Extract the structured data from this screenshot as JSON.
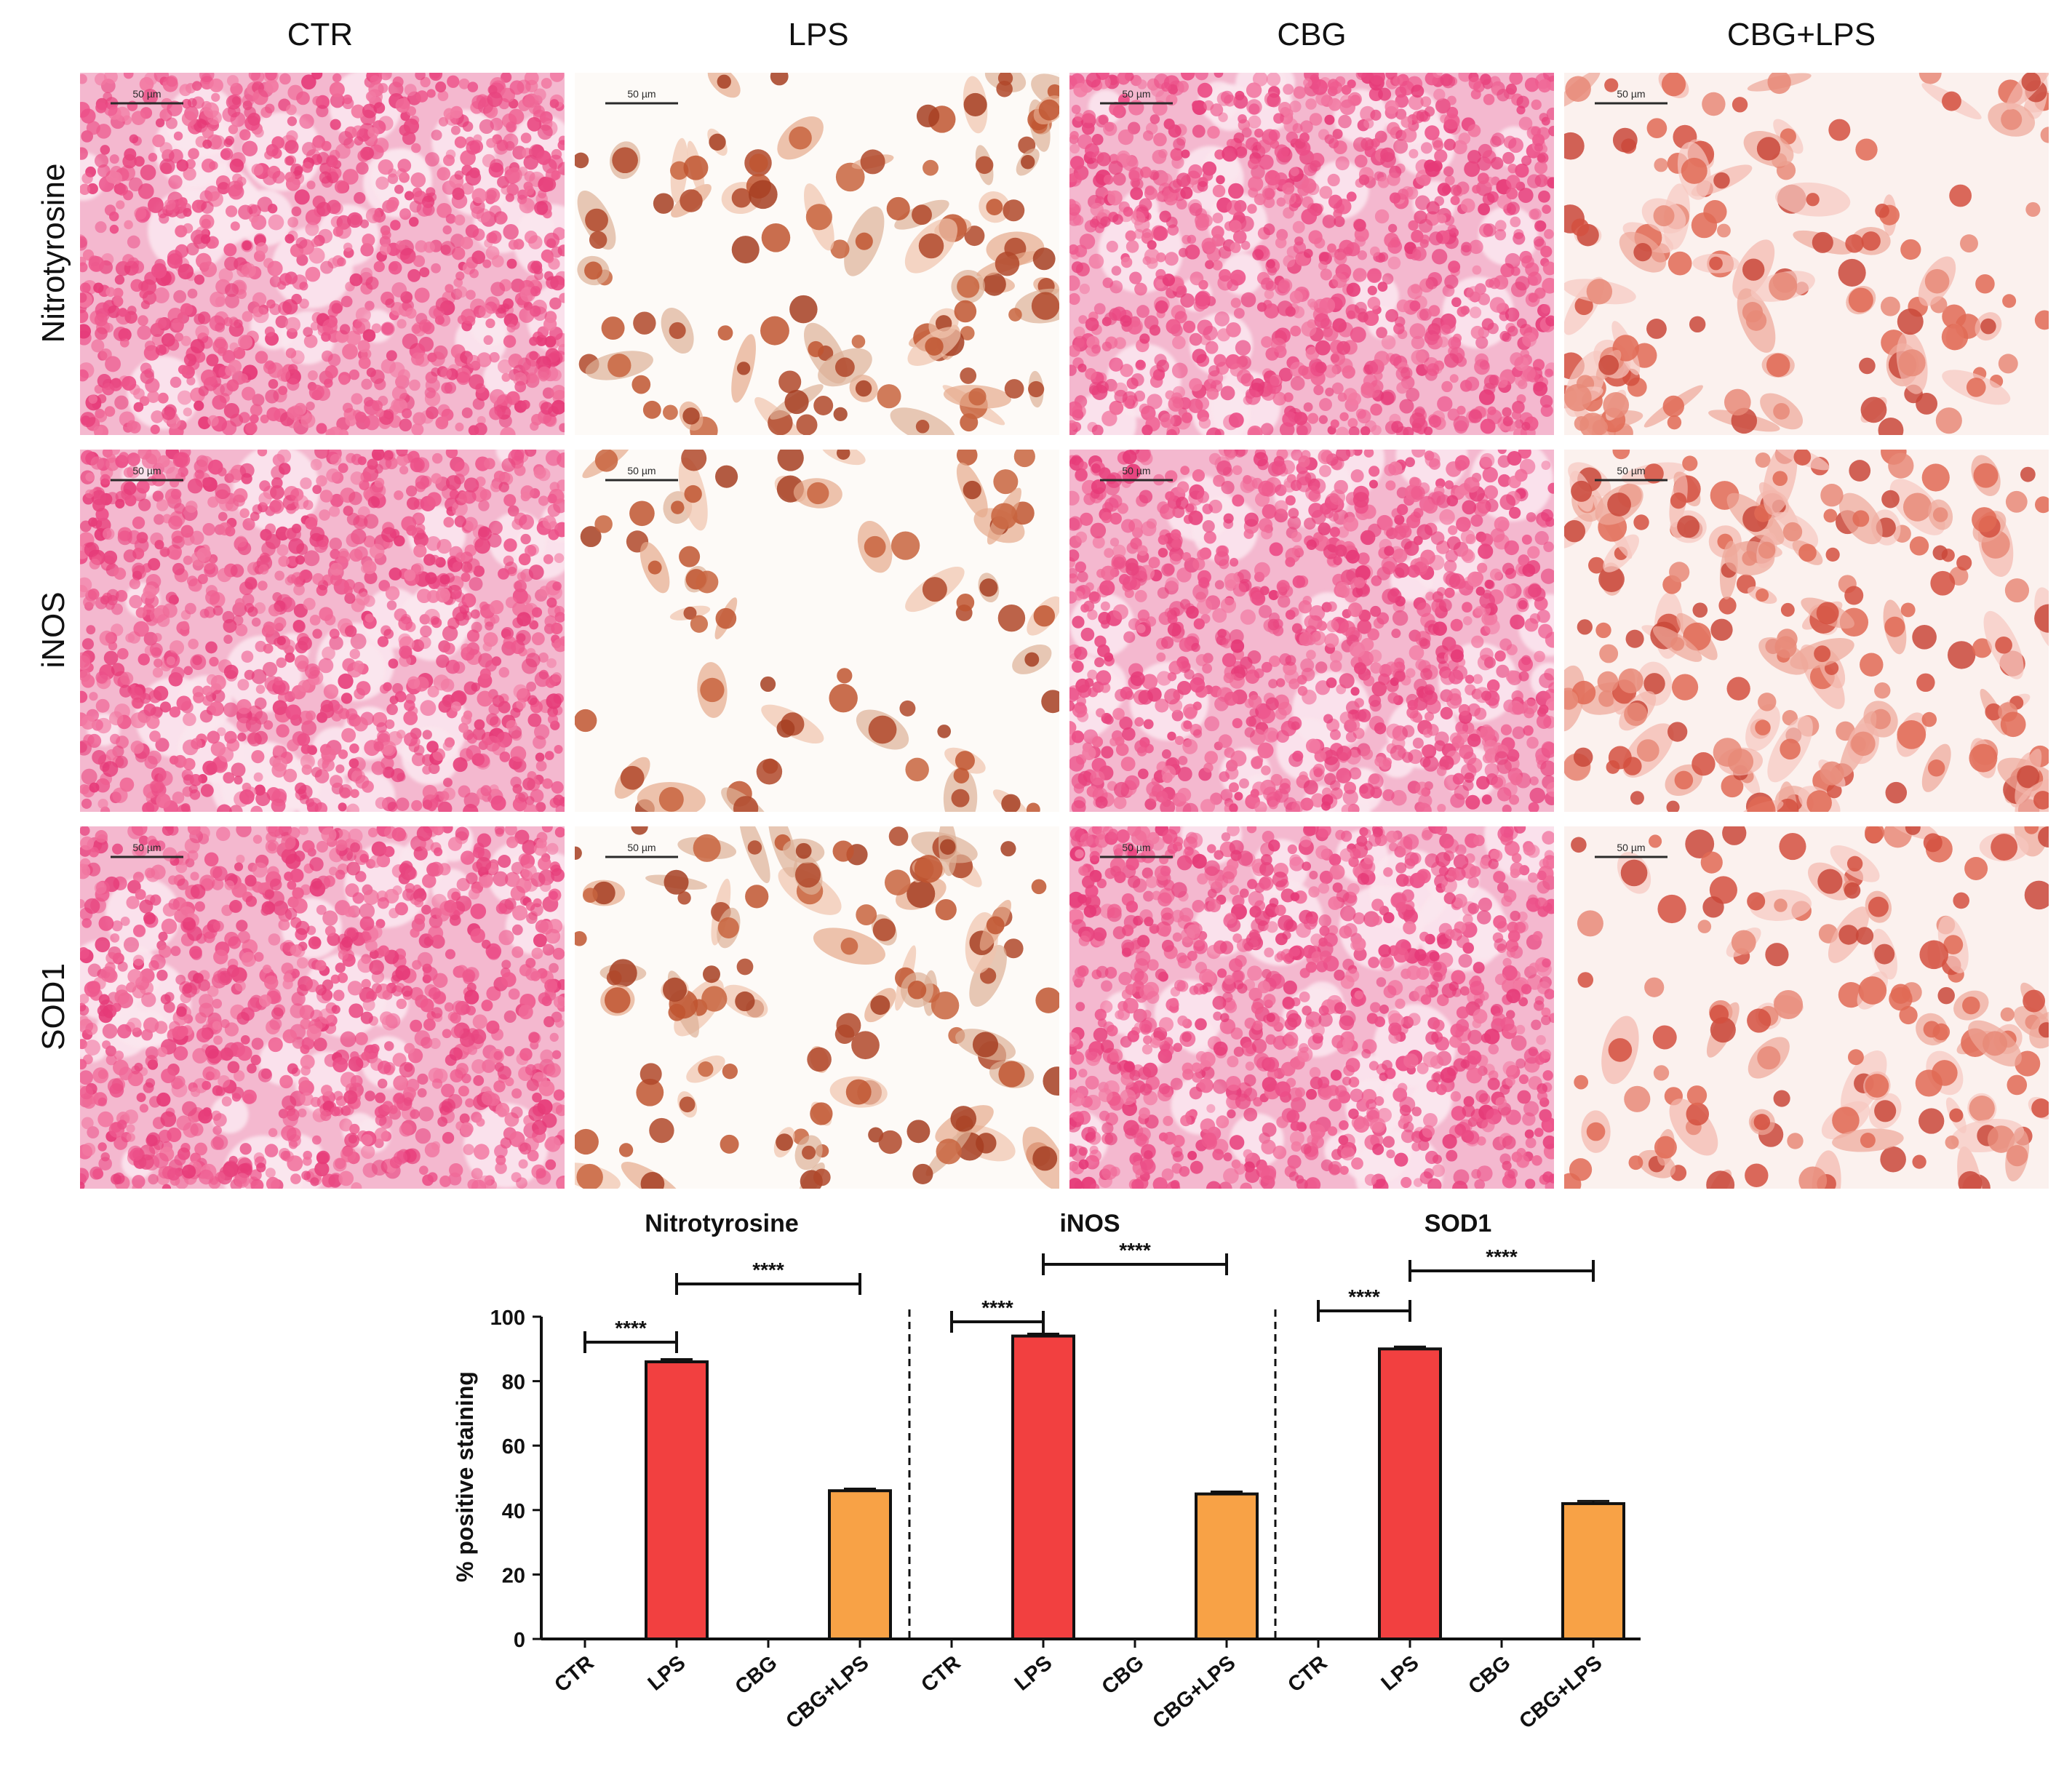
{
  "figure": {
    "columns": [
      "CTR",
      "LPS",
      "CBG",
      "CBG+LPS"
    ],
    "rows": [
      "Nitrotyrosine",
      "iNOS",
      "SOD1"
    ],
    "scale_bar": "50 µm"
  },
  "chart_data": {
    "type": "bar",
    "ylabel": "% positive staining",
    "ylim": [
      0,
      100
    ],
    "yticks": [
      0,
      20,
      40,
      60,
      80,
      100
    ],
    "categories": [
      "CTR",
      "LPS",
      "CBG",
      "CBG+LPS"
    ],
    "colors": {
      "LPS": "#f24040",
      "CBG+LPS": "#f8a246"
    },
    "groups": [
      {
        "name": "Nitrotyrosine",
        "values": [
          0,
          86,
          0,
          46
        ],
        "errors": [
          0,
          0.8,
          0,
          0.6
        ],
        "comparisons": [
          {
            "from": "CTR",
            "to": "LPS",
            "label": "****"
          },
          {
            "from": "LPS",
            "to": "CBG+LPS",
            "label": "****"
          }
        ]
      },
      {
        "name": "iNOS",
        "values": [
          0,
          94,
          0,
          45
        ],
        "errors": [
          0,
          0.7,
          0,
          0.7
        ],
        "comparisons": [
          {
            "from": "CTR",
            "to": "LPS",
            "label": "****"
          },
          {
            "from": "LPS",
            "to": "CBG+LPS",
            "label": "****"
          }
        ]
      },
      {
        "name": "SOD1",
        "values": [
          0,
          90,
          0,
          42
        ],
        "errors": [
          0,
          0.7,
          0,
          0.8
        ],
        "comparisons": [
          {
            "from": "CTR",
            "to": "LPS",
            "label": "****"
          },
          {
            "from": "LPS",
            "to": "CBG+LPS",
            "label": "****"
          }
        ]
      }
    ]
  }
}
